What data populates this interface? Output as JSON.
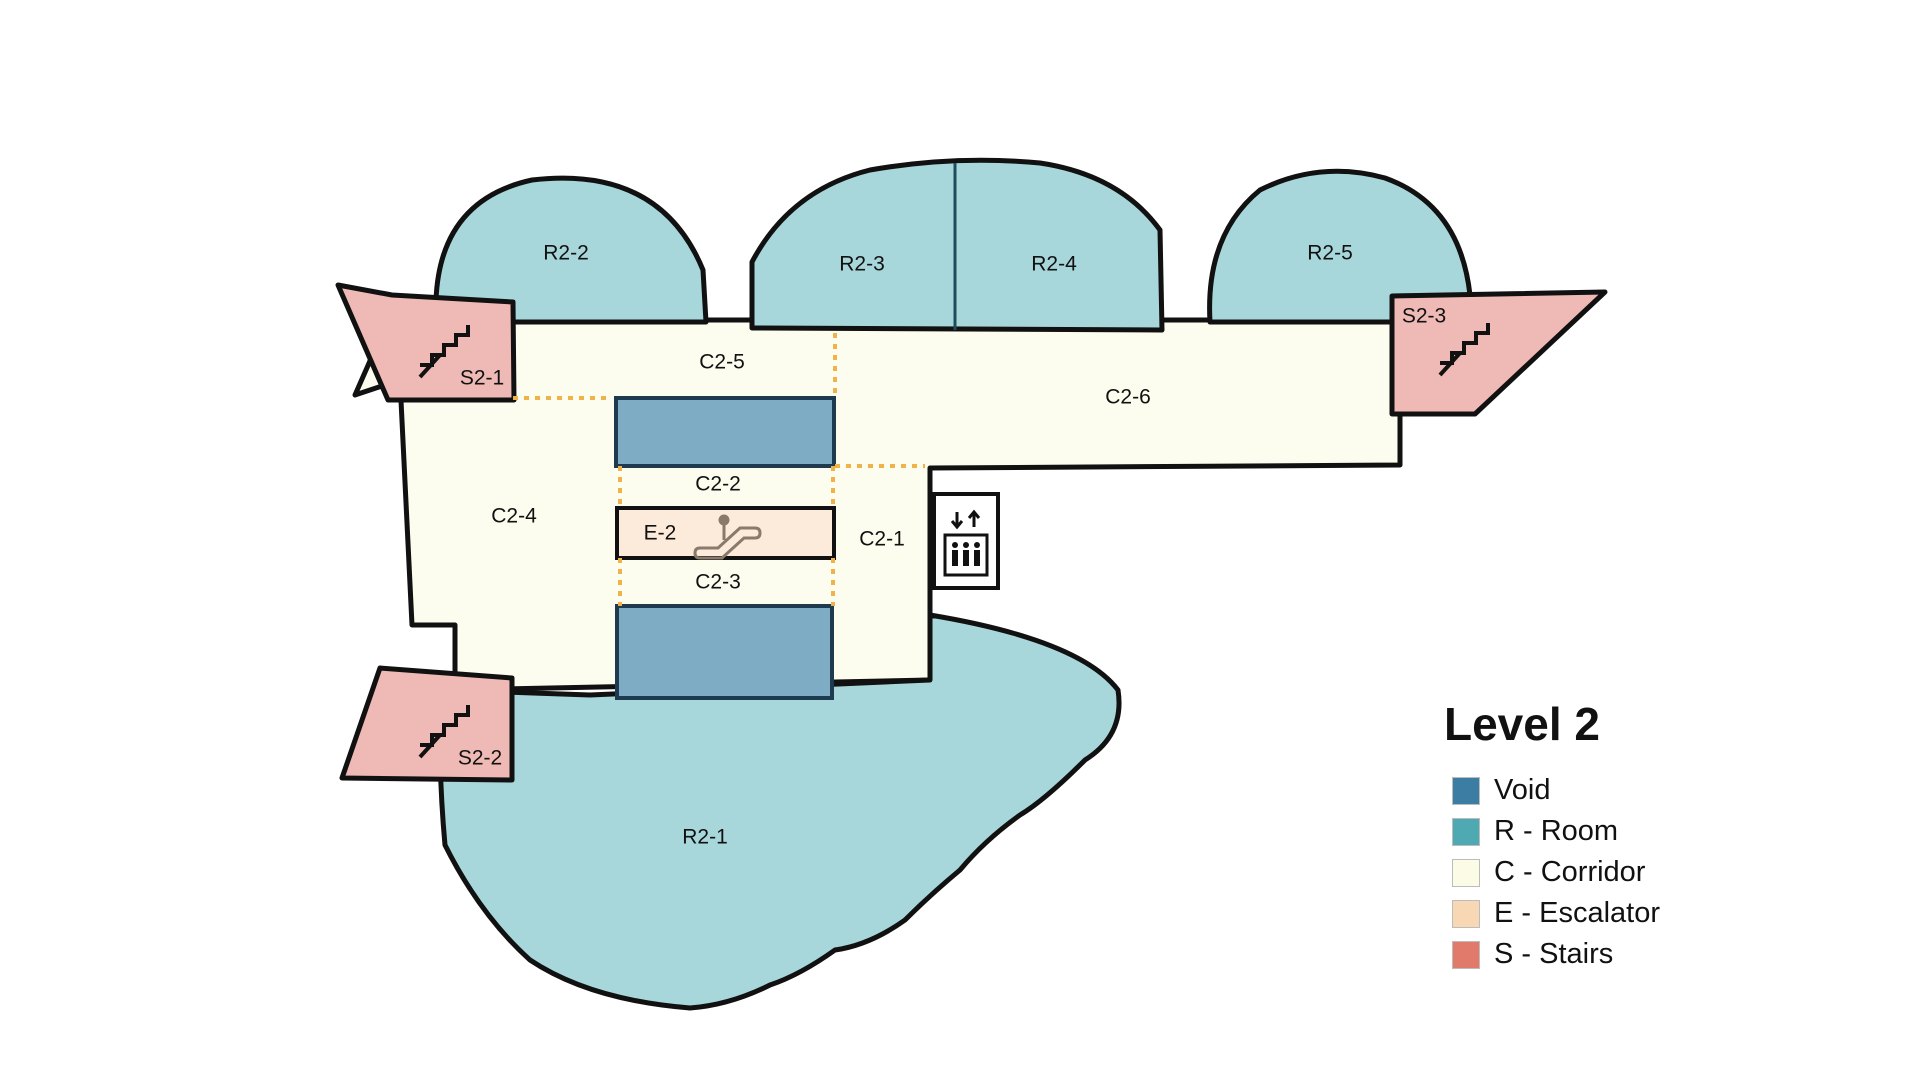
{
  "map": {
    "colors": {
      "room": "#a8d7db",
      "corridor": "#fcfcef",
      "void": "#7dacc4",
      "escalator": "#fcebdb",
      "stairs": "#efbab5",
      "outline": "#111111",
      "boundary": "#f2b24a"
    },
    "rooms": {
      "r2_1": "R2-1",
      "r2_2": "R2-2",
      "r2_3": "R2-3",
      "r2_4": "R2-4",
      "r2_5": "R2-5"
    },
    "corridors": {
      "c2_1": "C2-1",
      "c2_2": "C2-2",
      "c2_3": "C2-3",
      "c2_4": "C2-4",
      "c2_5": "C2-5",
      "c2_6": "C2-6"
    },
    "stairs": {
      "s2_1": "S2-1",
      "s2_2": "S2-2",
      "s2_3": "S2-3"
    },
    "escalator": {
      "e2": "E-2"
    },
    "icons": [
      "stairs-icon",
      "escalator-icon",
      "elevator-icon"
    ]
  },
  "legend": {
    "title": "Level 2",
    "items": [
      {
        "label": "Void",
        "color": "#3c7ea3"
      },
      {
        "label": "R - Room",
        "color": "#4ea9b3"
      },
      {
        "label": "C - Corridor",
        "color": "#fcfbe6"
      },
      {
        "label": "E - Escalator",
        "color": "#f8d7b4"
      },
      {
        "label": "S - Stairs",
        "color": "#e27a6c"
      }
    ]
  }
}
